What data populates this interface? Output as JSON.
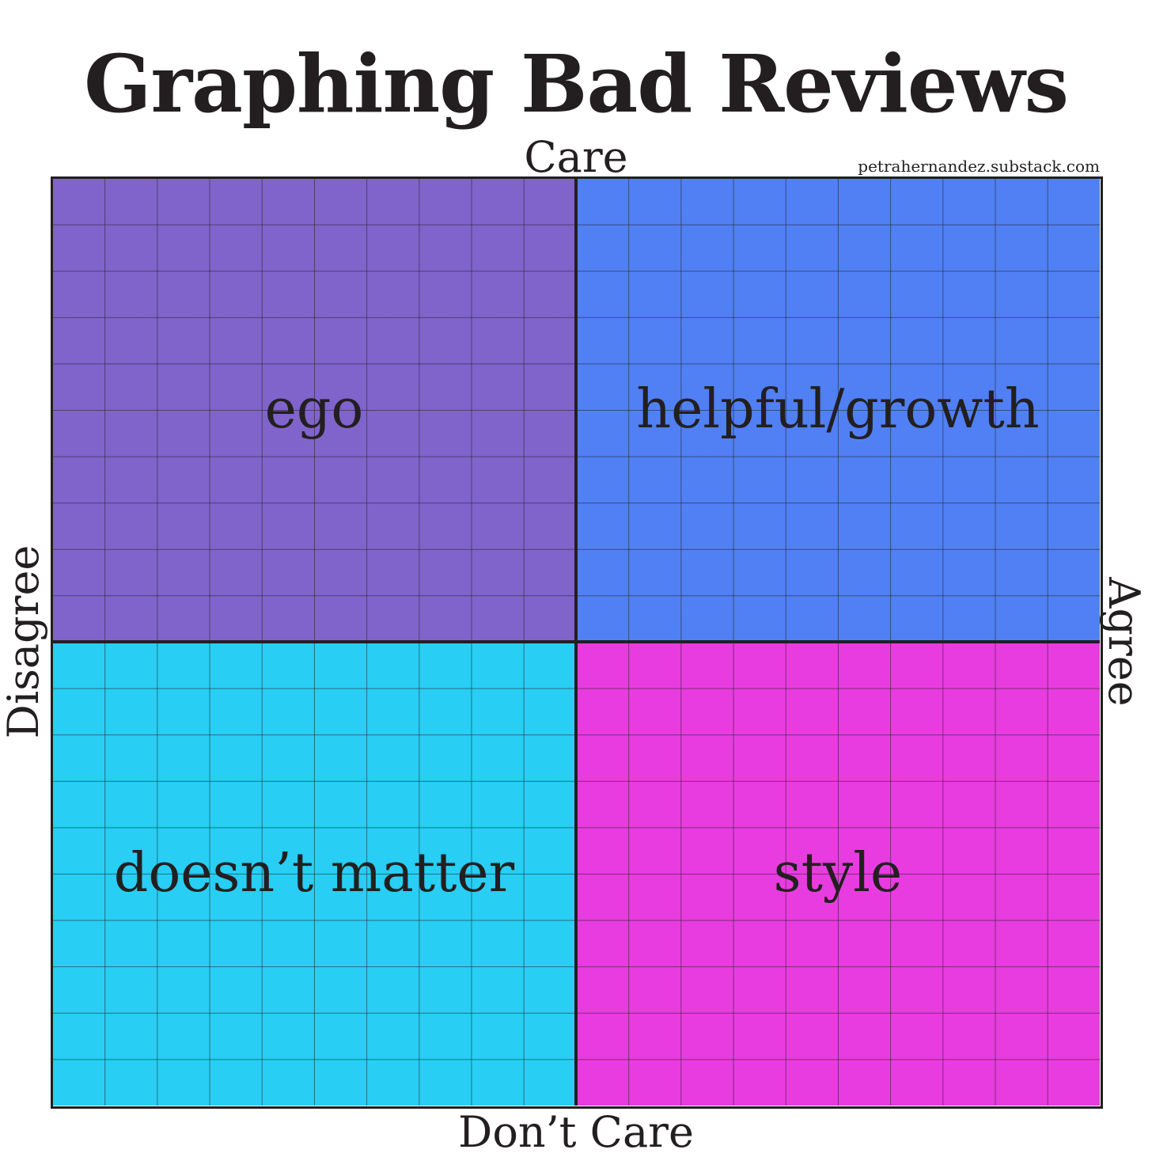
{
  "title": "Graphing Bad Reviews",
  "watermark": "petrahernandez.substack.com",
  "axes": {
    "top": "Care",
    "bottom": "Don’t Care",
    "left": "Disagree",
    "right": "Agree"
  },
  "quadrants": {
    "top_left": {
      "label": "ego",
      "color": "#8064cc"
    },
    "top_right": {
      "label": "helpful/growth",
      "color": "#5080f4"
    },
    "bottom_left": {
      "label": "doesn’t matter",
      "color": "#28cef4"
    },
    "bottom_right": {
      "label": "style",
      "color": "#e83ce0"
    }
  },
  "grid_line_color": "#231f20"
}
